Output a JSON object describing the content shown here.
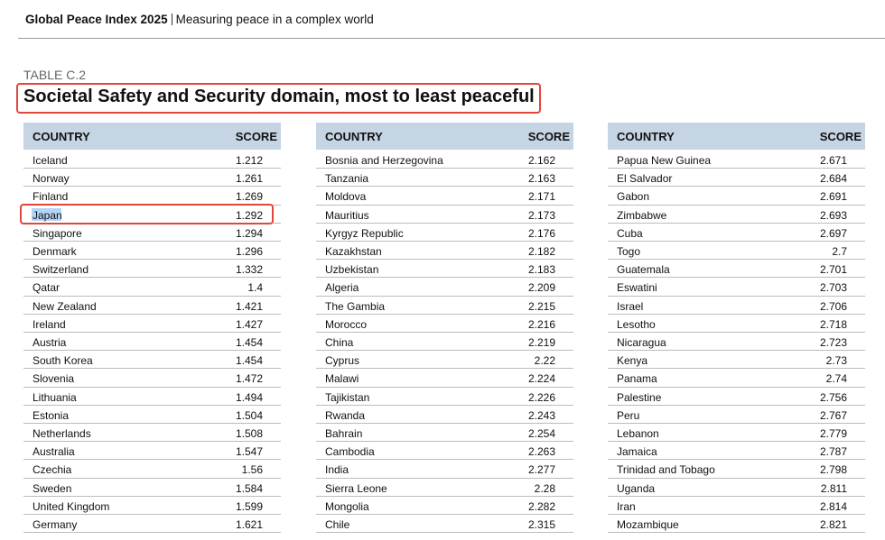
{
  "header": {
    "title": "Global Peace Index 2025",
    "subtitle": "Measuring peace in a complex world"
  },
  "table_label": "TABLE C.2",
  "table_title": "Societal Safety and Security domain, most to least peaceful",
  "tables": [
    {
      "columns": [
        "COUNTRY",
        "SCORE"
      ],
      "rows": [
        [
          "Iceland",
          1.212
        ],
        [
          "Norway",
          1.261
        ],
        [
          "Finland",
          1.269
        ],
        [
          "Japan",
          1.292
        ],
        [
          "Singapore",
          1.294
        ],
        [
          "Denmark",
          1.296
        ],
        [
          "Switzerland",
          1.332
        ],
        [
          "Qatar",
          1.4
        ],
        [
          "New Zealand",
          1.421
        ],
        [
          "Ireland",
          1.427
        ],
        [
          "Austria",
          1.454
        ],
        [
          "South Korea",
          1.454
        ],
        [
          "Slovenia",
          1.472
        ],
        [
          "Lithuania",
          1.494
        ],
        [
          "Estonia",
          1.504
        ],
        [
          "Netherlands",
          1.508
        ],
        [
          "Australia",
          1.547
        ],
        [
          "Czechia",
          1.56
        ],
        [
          "Sweden",
          1.584
        ],
        [
          "United Kingdom",
          1.599
        ],
        [
          "Germany",
          1.621
        ]
      ]
    },
    {
      "columns": [
        "COUNTRY",
        "SCORE"
      ],
      "rows": [
        [
          "Bosnia and Herzegovina",
          2.162
        ],
        [
          "Tanzania",
          2.163
        ],
        [
          "Moldova",
          2.171
        ],
        [
          "Mauritius",
          2.173
        ],
        [
          "Kyrgyz Republic",
          2.176
        ],
        [
          "Kazakhstan",
          2.182
        ],
        [
          "Uzbekistan",
          2.183
        ],
        [
          "Algeria",
          2.209
        ],
        [
          "The Gambia",
          2.215
        ],
        [
          "Morocco",
          2.216
        ],
        [
          "China",
          2.219
        ],
        [
          "Cyprus",
          2.22
        ],
        [
          "Malawi",
          2.224
        ],
        [
          "Tajikistan",
          2.226
        ],
        [
          "Rwanda",
          2.243
        ],
        [
          "Bahrain",
          2.254
        ],
        [
          "Cambodia",
          2.263
        ],
        [
          "India",
          2.277
        ],
        [
          "Sierra Leone",
          2.28
        ],
        [
          "Mongolia",
          2.282
        ],
        [
          "Chile",
          2.315
        ]
      ]
    },
    {
      "columns": [
        "COUNTRY",
        "SCORE"
      ],
      "rows": [
        [
          "Papua New Guinea",
          2.671
        ],
        [
          "El Salvador",
          2.684
        ],
        [
          "Gabon",
          2.691
        ],
        [
          "Zimbabwe",
          2.693
        ],
        [
          "Cuba",
          2.697
        ],
        [
          "Togo",
          2.7
        ],
        [
          "Guatemala",
          2.701
        ],
        [
          "Eswatini",
          2.703
        ],
        [
          "Israel",
          2.706
        ],
        [
          "Lesotho",
          2.718
        ],
        [
          "Nicaragua",
          2.723
        ],
        [
          "Kenya",
          2.73
        ],
        [
          "Panama",
          2.74
        ],
        [
          "Palestine",
          2.756
        ],
        [
          "Peru",
          2.767
        ],
        [
          "Lebanon",
          2.779
        ],
        [
          "Jamaica",
          2.787
        ],
        [
          "Trinidad and Tobago",
          2.798
        ],
        [
          "Uganda",
          2.811
        ],
        [
          "Iran",
          2.814
        ],
        [
          "Mozambique",
          2.821
        ]
      ]
    }
  ]
}
